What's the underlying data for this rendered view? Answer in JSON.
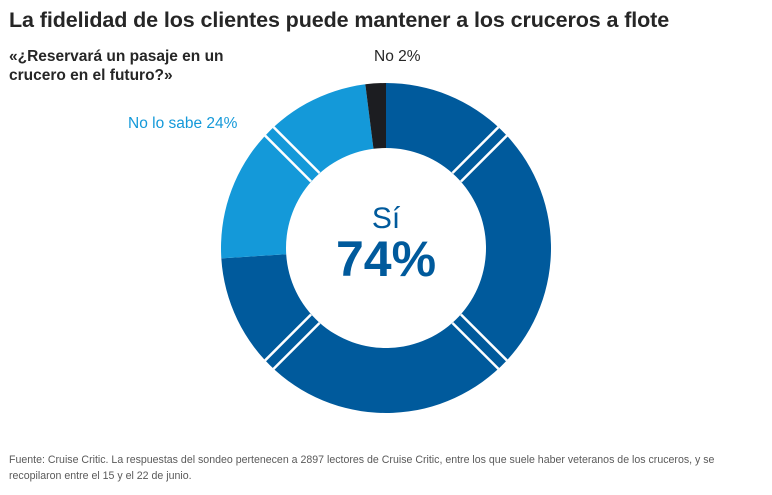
{
  "title": "La fidelidad de los clientes puede mantener a los cruceros a flote",
  "subtitle": "«¿Reservará un pasaje en un crucero en el futuro?»",
  "colors": {
    "si": "#005a9c",
    "no_lo_sabe": "#1499d9",
    "no": "#1c1d21",
    "divider": "#ffffff",
    "center_text": "#005a9c"
  },
  "chart_data": {
    "type": "pie",
    "style": "donut",
    "title": "La fidelidad de los clientes puede mantener a los cruceros a flote",
    "subtitle": "«¿Reservará un pasaje en un crucero en el futuro?»",
    "categories": [
      "Sí",
      "No lo sabe",
      "No"
    ],
    "values": [
      74,
      24,
      2
    ],
    "unit": "%",
    "labels": {
      "no_lo_sabe": "No lo sabe 24%",
      "no": "No 2%"
    },
    "center": {
      "label": "Sí",
      "value": "74%"
    }
  },
  "footer": "Fuente: Cruise Critic. La respuestas del sondeo pertenecen a 2897 lectores de Cruise Critic, entre los que suele haber veteranos de los cruceros, y se recopilaron entre el 15 y el 22 de junio."
}
